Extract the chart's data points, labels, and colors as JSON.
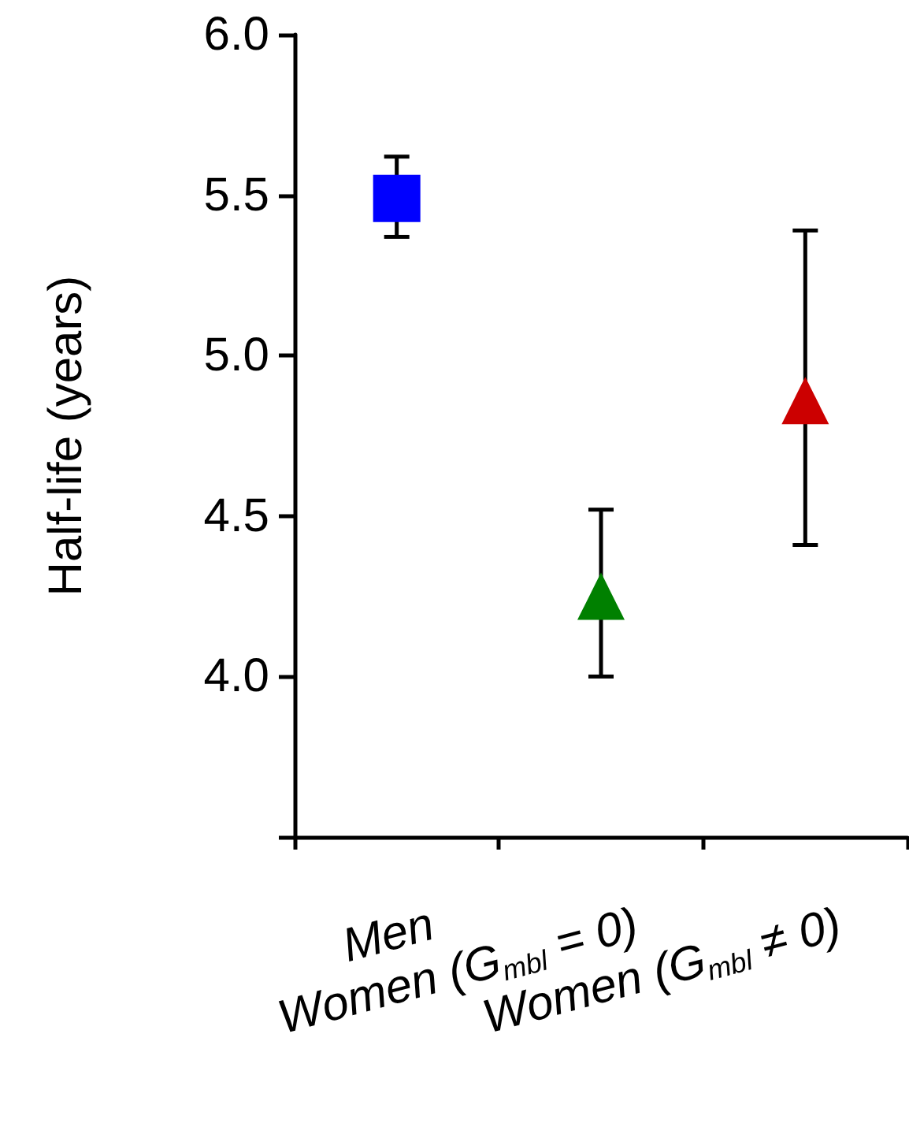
{
  "chart_data": {
    "type": "scatter",
    "ylabel": "Half-life (years)",
    "categories": [
      "Men",
      "Women (G$_{mbl}$ = 0)",
      "Women (G$_{mbl}$ ≠ 0)"
    ],
    "series": [
      {
        "color": "#0000ff",
        "marker": "square",
        "x": [
          "Men"
        ],
        "values": [
          5.49
        ],
        "errors": [
          [
            5.37,
            5.62
          ]
        ]
      },
      {
        "color": "#008000",
        "marker": "triangle",
        "x": [
          "Women (G$_{mbl}$ = 0)"
        ],
        "values": [
          4.25
        ],
        "errors": [
          [
            4.0,
            4.52
          ]
        ]
      },
      {
        "color": "#cc0000",
        "marker": "triangle",
        "x": [
          "Women (G$_{mbl}$ ≠ 0)"
        ],
        "values": [
          4.86
        ],
        "errors": [
          [
            4.41,
            5.39
          ]
        ]
      }
    ],
    "ylim": [
      3.5,
      6.0
    ],
    "yticks": [
      {
        "value": 3.5,
        "label": null
      },
      {
        "value": 4.0,
        "label": "4.0"
      },
      {
        "value": 4.5,
        "label": "4.5"
      },
      {
        "value": 5.0,
        "label": "5.0"
      },
      {
        "value": 5.5,
        "label": "5.5"
      },
      {
        "value": 6.0,
        "label": "6.0"
      }
    ]
  }
}
